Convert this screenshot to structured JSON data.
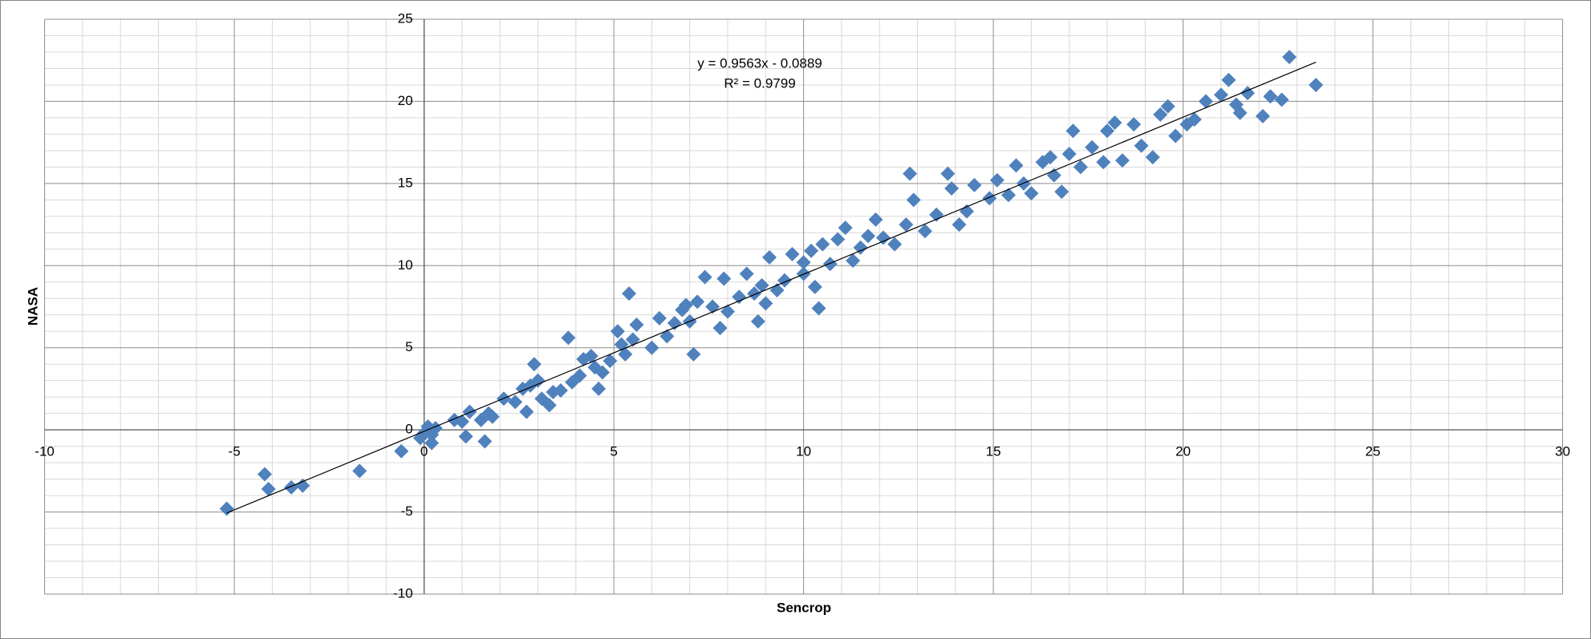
{
  "chart_data": {
    "type": "scatter",
    "x_label": "Sencrop",
    "y_label": "NASA",
    "color": "#4f81bd",
    "xlim": [
      -10,
      30
    ],
    "xticks": [
      -10,
      -5,
      0,
      5,
      10,
      15,
      20,
      25,
      30
    ],
    "ylim": [
      -10,
      25
    ],
    "yticks": [
      -10,
      -5,
      0,
      5,
      10,
      15,
      20,
      25
    ],
    "grid": true,
    "minor_grid": true,
    "trendline": {
      "equation": "y = 0.9563x - 0.0889",
      "r2": "R² = 0.9799",
      "slope": 0.9563,
      "intercept": -0.0889
    },
    "x": [
      -5.2,
      -4.2,
      -4.1,
      -3.5,
      -3.2,
      -1.7,
      -0.6,
      -0.1,
      0,
      0.1,
      0.2,
      0.3,
      0.2,
      0.8,
      1,
      1.1,
      1.2,
      1.5,
      1.6,
      1.7,
      1.8,
      2.1,
      2.4,
      2.6,
      2.7,
      2.8,
      2.9,
      3,
      3.1,
      3.3,
      3.4,
      3.6,
      3.8,
      3.9,
      4.1,
      4.2,
      4.4,
      4.5,
      4.6,
      4.7,
      4.9,
      5.1,
      5.2,
      5.3,
      5.4,
      5.5,
      5.6,
      6,
      6.2,
      6.4,
      6.6,
      6.8,
      6.9,
      7,
      7.1,
      7.2,
      7.4,
      7.6,
      7.8,
      7.9,
      8,
      8.3,
      8.5,
      8.7,
      8.8,
      8.9,
      9,
      9.1,
      9.3,
      9.5,
      9.7,
      10,
      10,
      10.2,
      10.3,
      10.4,
      10.5,
      10.7,
      10.9,
      11.1,
      11.3,
      11.5,
      11.7,
      11.9,
      12.1,
      12.4,
      12.7,
      12.8,
      12.9,
      13.2,
      13.5,
      13.8,
      13.9,
      14.1,
      14.3,
      14.5,
      14.9,
      15.1,
      15.4,
      15.6,
      15.8,
      16,
      16.3,
      16.5,
      16.6,
      16.8,
      17,
      17.1,
      17.3,
      17.6,
      17.9,
      18,
      18.2,
      18.4,
      18.7,
      18.9,
      19.2,
      19.4,
      19.6,
      19.8,
      20.1,
      20.3,
      20.6,
      21,
      21.2,
      21.4,
      21.5,
      21.7,
      22.1,
      22.3,
      22.6,
      22.8,
      23.5
    ],
    "y": [
      -4.8,
      -2.7,
      -3.6,
      -3.5,
      -3.4,
      -2.5,
      -1.3,
      -0.5,
      -0.2,
      0.2,
      -0.3,
      0.1,
      -0.8,
      0.6,
      0.5,
      -0.4,
      1.1,
      0.6,
      -0.7,
      1,
      0.8,
      1.9,
      1.7,
      2.5,
      1.1,
      2.7,
      4,
      3,
      1.9,
      1.5,
      2.3,
      2.4,
      5.6,
      2.9,
      3.3,
      4.3,
      4.5,
      3.8,
      2.5,
      3.5,
      4.2,
      6,
      5.2,
      4.6,
      8.3,
      5.5,
      6.4,
      5,
      6.8,
      5.7,
      6.5,
      7.3,
      7.6,
      6.6,
      4.6,
      7.8,
      9.3,
      7.5,
      6.2,
      9.2,
      7.2,
      8.1,
      9.5,
      8.3,
      6.6,
      8.8,
      7.7,
      10.5,
      8.5,
      9.1,
      10.7,
      10.2,
      9.5,
      10.9,
      8.7,
      7.4,
      11.3,
      10.1,
      11.6,
      12.3,
      10.3,
      11.1,
      11.8,
      12.8,
      11.7,
      11.3,
      12.5,
      15.6,
      14,
      12.1,
      13.1,
      15.6,
      14.7,
      12.5,
      13.3,
      14.9,
      14.1,
      15.2,
      14.3,
      16.1,
      15,
      14.4,
      16.3,
      16.6,
      15.5,
      14.5,
      16.8,
      18.2,
      16,
      17.2,
      16.3,
      18.2,
      18.7,
      16.4,
      18.6,
      17.3,
      16.6,
      19.2,
      19.7,
      17.9,
      18.6,
      18.9,
      20,
      20.4,
      21.3,
      19.8,
      19.3,
      20.5,
      19.1,
      20.3,
      20.1,
      22.7,
      21
    ]
  }
}
